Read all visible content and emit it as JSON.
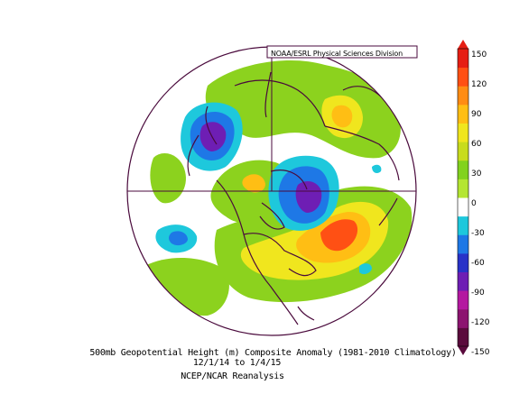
{
  "credit": "NOAA/ESRL Physical Sciences Division",
  "caption": {
    "line1": "500mb Geopotential Height (m) Composite Anomaly (1981-2010 Climatology)",
    "line2": "12/1/14  to 1/4/15",
    "line3": "NCEP/NCAR Reanalysis"
  },
  "colorbar": {
    "ticks": [
      "150",
      "120",
      "90",
      "60",
      "30",
      "0",
      "-30",
      "-60",
      "-90",
      "-120",
      "-150"
    ],
    "colors": [
      "#5a0a3c",
      "#8c1470",
      "#b418a0",
      "#6e1eb4",
      "#2832c8",
      "#1e78e6",
      "#1ec8dc",
      "#ffffff",
      "#b4e632",
      "#82d21e",
      "#c8dc1e",
      "#f0e61e",
      "#ffbe14",
      "#ff8c14",
      "#ff5014",
      "#e61e14"
    ]
  },
  "map": {
    "type": "polar stereographic composite anomaly",
    "projection": "north pole",
    "anomalies": [
      {
        "region": "eastern North Pacific / Alaska coast",
        "sign": "negative",
        "level": -100
      },
      {
        "region": "Hudson Bay / Canadian Arctic",
        "sign": "negative",
        "level": -90
      },
      {
        "region": "central North Atlantic",
        "sign": "positive",
        "level": 120
      },
      {
        "region": "western Canada",
        "sign": "positive",
        "level": 60
      },
      {
        "region": "Arctic Ocean / Europe",
        "sign": "positive",
        "level": 45
      }
    ]
  }
}
